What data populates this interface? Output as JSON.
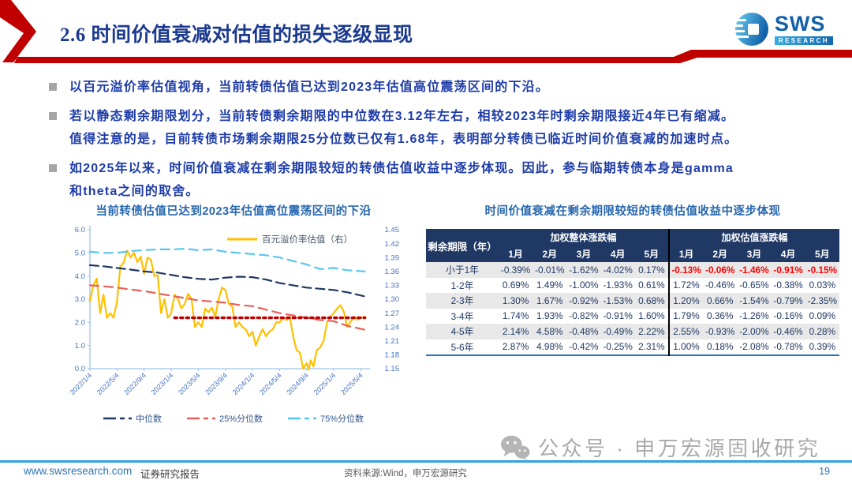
{
  "header": {
    "title": "2.6 时间价值衰减对估值的损失逐级显现",
    "logo_brand": "SWS",
    "logo_sub": "RESEARCH"
  },
  "colors": {
    "accent_red": "#C00000",
    "title_blue": "#1B3A8F",
    "bullet_blue": "#1E3CA8",
    "section_title_blue": "#2767AE",
    "table_header_navy": "#1F3864",
    "highlight_red": "#FE0000",
    "footer_line_blue": "#2EA3DC",
    "axis_label_blue": "#4472C4"
  },
  "bullets": [
    {
      "lines": [
        "以百元溢价率估值视角，当前转债估值已达到2023年估值高位震荡区间的下沿。"
      ]
    },
    {
      "lines": [
        "若以静态剩余期限划分，当前转债剩余期限的中位数在3.12年左右，相较2023年时剩余期限接近4年已有缩减。",
        "值得注意的是，目前转债市场剩余期限25分位数已仅有1.68年，表明部分转债已临近时间价值衰减的加速时点。"
      ]
    },
    {
      "lines": [
        "如2025年以来，时间价值衰减在剩余期限较短的转债估值收益中逐步体现。因此，参与临期转债本身是gamma",
        "和theta之间的取舍。"
      ]
    }
  ],
  "chart_data": {
    "type": "line",
    "title": "当前转债估值已达到2023年估值高位震荡区间的下沿",
    "x_unit": "months since 2022/1/4",
    "x_range": [
      0,
      41
    ],
    "x_tick_positions": [
      0,
      4,
      8,
      12,
      16,
      20,
      24,
      28,
      32,
      36,
      40
    ],
    "x_tick_labels": [
      "2022/1/4",
      "2022/5/4",
      "2022/9/4",
      "2023/1/4",
      "2023/5/4",
      "2023/9/4",
      "2024/1/4",
      "2024/5/4",
      "2024/9/4",
      "2025/1/4",
      "2025/5/4"
    ],
    "left_axis": {
      "min": 0,
      "max": 6,
      "tick_labels": [
        "6.0",
        "5.0",
        "4.0",
        "3.0",
        "2.0",
        "1.0",
        "0.0"
      ]
    },
    "right_axis": {
      "min": 1.15,
      "max": 1.45,
      "tick_labels": [
        "1.45",
        "1.42",
        "1.39",
        "1.36",
        "1.33",
        "1.30",
        "1.27",
        "1.24",
        "1.21",
        "1.18",
        "1.15"
      ]
    },
    "grid": false,
    "series": [
      {
        "id": "premium-valuation",
        "name": "百元溢价率估值（右）",
        "axis": "right",
        "legend": "top",
        "color": "#FFC000",
        "style": "solid",
        "width": 2.2,
        "x": [
          0,
          0.5,
          1,
          1.5,
          2,
          2.5,
          3,
          3.5,
          4,
          4.5,
          5,
          5.5,
          6,
          6.5,
          7,
          7.5,
          8,
          8.5,
          9,
          9.5,
          10,
          10.5,
          11,
          11.5,
          12,
          12.5,
          13,
          13.5,
          14,
          14.5,
          15,
          15.5,
          16,
          16.5,
          17,
          17.5,
          18,
          18.5,
          19,
          19.5,
          20,
          20.5,
          21,
          21.5,
          22,
          22.5,
          23,
          23.5,
          24,
          24.5,
          25,
          25.5,
          26,
          26.5,
          27,
          27.5,
          28,
          28.5,
          29,
          29.5,
          30,
          30.5,
          31,
          31.5,
          32,
          32.3,
          32.6,
          33,
          33.5,
          34,
          34.5,
          35,
          35.5,
          36,
          36.5,
          37,
          37.5,
          38,
          38.5,
          39,
          39.5,
          40,
          40.6
        ],
        "y": [
          1.295,
          1.33,
          1.345,
          1.27,
          1.31,
          1.26,
          1.27,
          1.26,
          1.295,
          1.37,
          1.38,
          1.405,
          1.39,
          1.4,
          1.38,
          1.392,
          1.355,
          1.39,
          1.385,
          1.35,
          1.352,
          1.27,
          1.3,
          1.26,
          1.27,
          1.31,
          1.3,
          1.28,
          1.29,
          1.312,
          1.3,
          1.24,
          1.25,
          1.24,
          1.28,
          1.272,
          1.282,
          1.262,
          1.3,
          1.325,
          1.32,
          1.29,
          1.285,
          1.24,
          1.25,
          1.24,
          1.235,
          1.22,
          1.23,
          1.2,
          1.22,
          1.235,
          1.22,
          1.23,
          1.235,
          1.25,
          1.25,
          1.26,
          1.255,
          1.262,
          1.22,
          1.19,
          1.185,
          1.15,
          1.162,
          1.148,
          1.168,
          1.155,
          1.19,
          1.196,
          1.21,
          1.25,
          1.262,
          1.27,
          1.28,
          1.287,
          1.272,
          1.24,
          1.252,
          1.262,
          1.256,
          1.26,
          1.262
        ]
      },
      {
        "id": "median",
        "name": "中位数",
        "axis": "left",
        "legend": "bottom",
        "color": "#1F3864",
        "style": "dashed",
        "dash": "11,6",
        "width": 2.2,
        "x": [
          0,
          2,
          4,
          6,
          8,
          10,
          12,
          14,
          16,
          18,
          20,
          22,
          24,
          26,
          28,
          30,
          32,
          34,
          36,
          38,
          40.6
        ],
        "y": [
          4.47,
          4.42,
          4.35,
          4.28,
          4.2,
          4.15,
          4.05,
          3.95,
          3.88,
          3.85,
          3.93,
          3.97,
          3.95,
          3.85,
          3.7,
          3.6,
          3.5,
          3.45,
          3.4,
          3.3,
          3.12
        ]
      },
      {
        "id": "pct25",
        "name": "25%分位数",
        "axis": "left",
        "legend": "bottom",
        "color": "#E8605C",
        "style": "dashed",
        "dash": "11,7",
        "width": 2.2,
        "x": [
          0,
          2,
          4,
          6,
          8,
          10,
          12,
          14,
          16,
          18,
          20,
          22,
          24,
          26,
          28,
          30,
          32,
          34,
          36,
          38,
          40.6
        ],
        "y": [
          3.6,
          3.56,
          3.5,
          3.42,
          3.35,
          3.25,
          3.15,
          3.05,
          2.95,
          2.9,
          2.85,
          2.75,
          2.7,
          2.55,
          2.4,
          2.3,
          2.2,
          2.1,
          2.05,
          1.85,
          1.68
        ]
      },
      {
        "id": "pct75",
        "name": "75%分位数",
        "axis": "left",
        "legend": "bottom",
        "color": "#56C5F2",
        "style": "dashed",
        "dash": "11,7",
        "width": 2.2,
        "x": [
          0,
          2,
          4,
          6,
          8,
          10,
          12,
          14,
          16,
          18,
          20,
          22,
          24,
          26,
          28,
          30,
          32,
          34,
          36,
          38,
          40.6
        ],
        "y": [
          5.05,
          5.0,
          5.0,
          5.08,
          5.12,
          5.15,
          5.15,
          5.18,
          5.12,
          5.15,
          5.05,
          5.0,
          4.95,
          4.9,
          4.8,
          4.65,
          4.5,
          4.3,
          4.35,
          4.25,
          4.2
        ]
      },
      {
        "id": "reference-2023-low",
        "name": "2023年震荡区间下沿参考线",
        "axis": "left",
        "legend": "none",
        "color": "#C00000",
        "style": "dotted",
        "dash": "3,4.5",
        "width": 3.5,
        "x": [
          12.5,
          40.6
        ],
        "y": [
          2.2,
          2.2
        ]
      }
    ]
  },
  "table": {
    "title": "时间价值衰减在剩余期限较短的转债估值收益中逐步体现",
    "first_col_header": "剩余期限（年）",
    "group_headers": [
      "加权整体涨跌幅",
      "加权估值涨跌幅"
    ],
    "month_headers": [
      "1月",
      "2月",
      "3月",
      "4月",
      "5月"
    ],
    "rows": [
      {
        "label": "小于1年",
        "overall": [
          "-0.39%",
          "-0.01%",
          "-1.62%",
          "-4.02%",
          "0.17%"
        ],
        "valuation": [
          "-0.13%",
          "-0.06%",
          "-1.46%",
          "-0.91%",
          "-0.15%"
        ],
        "valuation_highlight": true
      },
      {
        "label": "1-2年",
        "overall": [
          "0.69%",
          "1.49%",
          "-1.00%",
          "-1.93%",
          "0.61%"
        ],
        "valuation": [
          "1.72%",
          "-0.46%",
          "-0.65%",
          "-0.38%",
          "0.03%"
        ],
        "valuation_highlight": false
      },
      {
        "label": "2-3年",
        "overall": [
          "1.30%",
          "1.67%",
          "-0.92%",
          "-1.53%",
          "0.68%"
        ],
        "valuation": [
          "1.20%",
          "0.66%",
          "-1.54%",
          "-0.79%",
          "-2.35%"
        ],
        "valuation_highlight": false
      },
      {
        "label": "3-4年",
        "overall": [
          "1.74%",
          "1.93%",
          "-0.82%",
          "-0.91%",
          "1.60%"
        ],
        "valuation": [
          "1.79%",
          "0.36%",
          "-1.26%",
          "-0.16%",
          "0.09%"
        ],
        "valuation_highlight": false
      },
      {
        "label": "4-5年",
        "overall": [
          "2.14%",
          "4.58%",
          "-0.48%",
          "-0.49%",
          "2.22%"
        ],
        "valuation": [
          "2.55%",
          "-0.93%",
          "-2.00%",
          "-0.46%",
          "0.28%"
        ],
        "valuation_highlight": false
      },
      {
        "label": "5-6年",
        "overall": [
          "2.87%",
          "4.98%",
          "-0.42%",
          "-0.25%",
          "2.31%"
        ],
        "valuation": [
          "1.00%",
          "0.18%",
          "-2.08%",
          "-0.78%",
          "0.39%"
        ],
        "valuation_highlight": false
      }
    ]
  },
  "watermark": {
    "text": "公众号 · 申万宏源固收研究"
  },
  "footer": {
    "website": "www.swsresearch.com",
    "report_type": "证券研究报告",
    "source": "资料来源:Wind，申万宏源研究",
    "page": "19"
  }
}
